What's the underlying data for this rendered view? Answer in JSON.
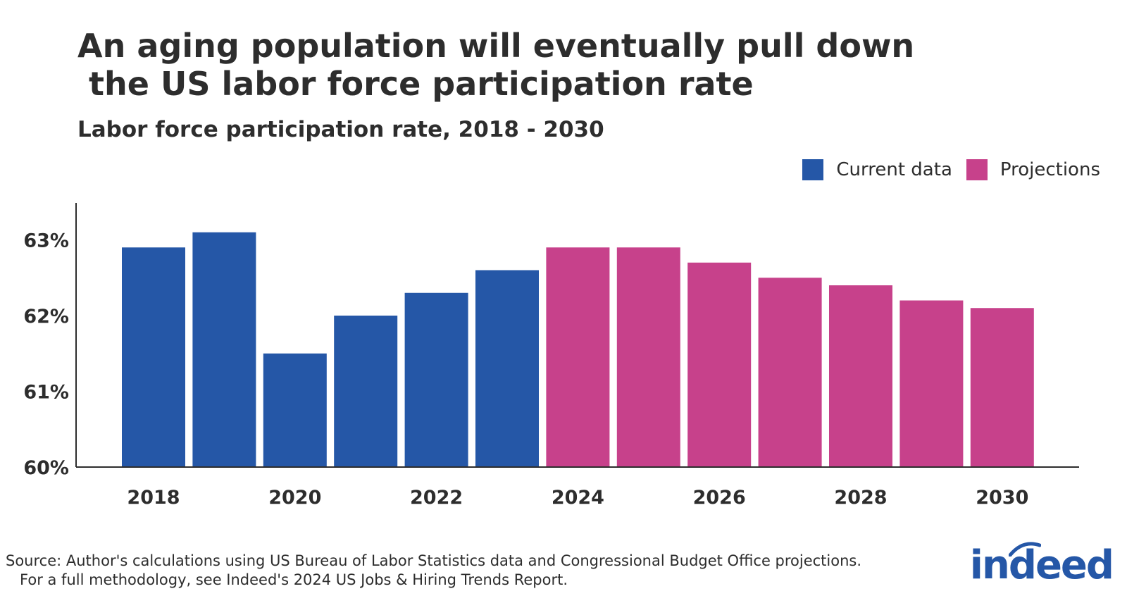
{
  "title_line1": "An aging population will eventually pull down",
  "title_line2": " the US labor force participation rate",
  "subtitle": "Labor force participation rate, 2018 - 2030",
  "legend": [
    {
      "label": "Current data",
      "color": "#2557a7"
    },
    {
      "label": "Projections",
      "color": "#c7418b"
    }
  ],
  "source_line1": "Source: Author's calculations using US Bureau of Labor Statistics data and Congressional Budget Office projections.",
  "source_line2": "   For a full methodology, see Indeed's 2024 US Jobs & Hiring Trends Report.",
  "logo_text": "indeed",
  "chart_data": {
    "type": "bar",
    "categories": [
      "2018",
      "2019",
      "2020",
      "2021",
      "2022",
      "2023",
      "2024",
      "2025",
      "2026",
      "2027",
      "2028",
      "2029",
      "2030"
    ],
    "series": [
      {
        "name": "Current data",
        "values": [
          62.9,
          63.1,
          61.5,
          62.0,
          62.3,
          62.6,
          null,
          null,
          null,
          null,
          null,
          null,
          null
        ],
        "color": "#2557a7"
      },
      {
        "name": "Projections",
        "values": [
          null,
          null,
          null,
          null,
          null,
          null,
          62.9,
          62.9,
          62.7,
          62.5,
          62.4,
          62.2,
          62.1
        ],
        "color": "#c7418b"
      }
    ],
    "x_tick_labels": [
      "2018",
      "2020",
      "2022",
      "2024",
      "2026",
      "2028",
      "2030"
    ],
    "y_ticks": [
      "60%",
      "61%",
      "62%",
      "63%"
    ],
    "y_tick_values": [
      60,
      61,
      62,
      63
    ],
    "ylim": [
      60,
      63.5
    ],
    "xlabel": "",
    "ylabel": "",
    "grid": false,
    "legend_position": "top-right"
  }
}
